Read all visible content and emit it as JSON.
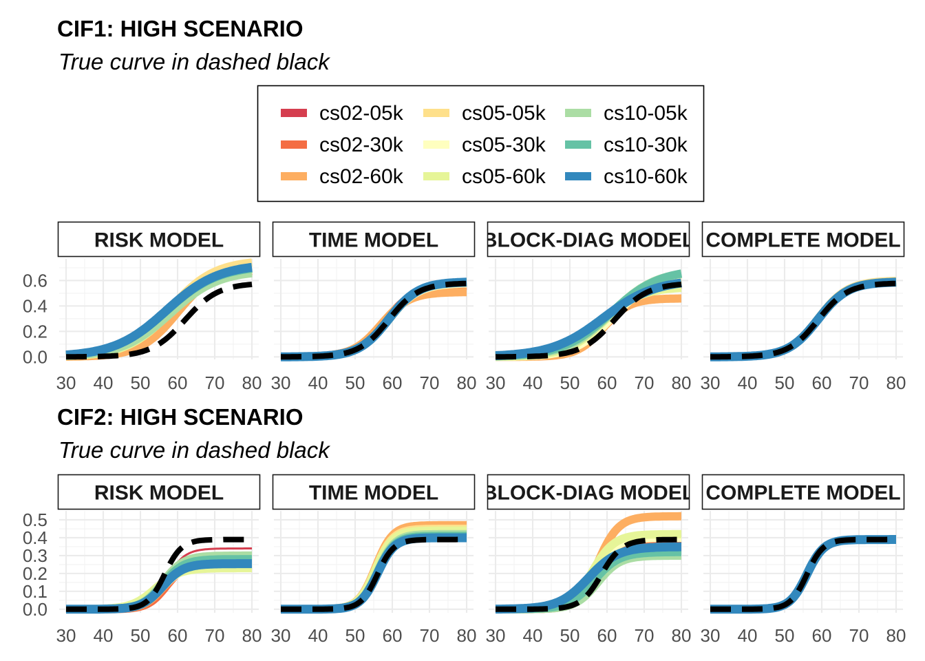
{
  "colors": {
    "cs02-05k": "#d53e4f",
    "cs02-30k": "#f46d43",
    "cs02-60k": "#fdae61",
    "cs05-05k": "#fee08b",
    "cs05-30k": "#ffffbf",
    "cs05-60k": "#e6f598",
    "cs10-05k": "#abdda4",
    "cs10-30k": "#66c2a5",
    "cs10-60k": "#3288bd",
    "true_curve": "#000000"
  },
  "legend": {
    "items": [
      "cs02-05k",
      "cs05-05k",
      "cs10-05k",
      "cs02-30k",
      "cs05-30k",
      "cs10-30k",
      "cs02-60k",
      "cs05-60k",
      "cs10-60k"
    ]
  },
  "chart_data": [
    {
      "type": "line",
      "title": "CIF1: HIGH SCENARIO",
      "subtitle": "True curve in dashed black",
      "x_ticks": [
        30,
        40,
        50,
        60,
        70,
        80
      ],
      "xlim": [
        30,
        80
      ],
      "y_ticks": [
        0.0,
        0.2,
        0.4,
        0.6
      ],
      "y_tick_labels": [
        "0.0",
        "0.2",
        "0.4",
        "0.6"
      ],
      "ylim": [
        -0.02,
        0.77
      ],
      "panels": [
        {
          "label": "RISK MODEL",
          "true_curve": {
            "plateau": 0.58,
            "midpoint": 62,
            "scale": 4.5
          },
          "series": [
            {
              "name": "cs02-05k",
              "plateau": 0.65,
              "midpoint": 59,
              "scale": 5.5
            },
            {
              "name": "cs02-30k",
              "plateau": 0.69,
              "midpoint": 59,
              "scale": 5.5
            },
            {
              "name": "cs02-60k",
              "plateau": 0.7,
              "midpoint": 60,
              "scale": 5.0
            },
            {
              "name": "cs05-05k",
              "plateau": 0.76,
              "midpoint": 58,
              "scale": 6.0
            },
            {
              "name": "cs05-30k",
              "plateau": 0.72,
              "midpoint": 58,
              "scale": 6.0
            },
            {
              "name": "cs05-60k",
              "plateau": 0.7,
              "midpoint": 58,
              "scale": 6.0
            },
            {
              "name": "cs10-05k",
              "plateau": 0.68,
              "midpoint": 58,
              "scale": 6.5
            },
            {
              "name": "cs10-30k",
              "plateau": 0.72,
              "midpoint": 57,
              "scale": 7.0
            },
            {
              "name": "cs10-60k",
              "plateau": 0.73,
              "midpoint": 57,
              "scale": 7.0
            }
          ]
        },
        {
          "label": "TIME MODEL",
          "true_curve": {
            "plateau": 0.58,
            "midpoint": 59,
            "scale": 4.0
          },
          "series": [
            {
              "name": "cs02-05k",
              "plateau": 0.58,
              "midpoint": 58,
              "scale": 4.0
            },
            {
              "name": "cs02-30k",
              "plateau": 0.56,
              "midpoint": 58,
              "scale": 4.0
            },
            {
              "name": "cs02-60k",
              "plateau": 0.51,
              "midpoint": 57,
              "scale": 3.8
            },
            {
              "name": "cs05-05k",
              "plateau": 0.59,
              "midpoint": 59,
              "scale": 4.0
            },
            {
              "name": "cs05-30k",
              "plateau": 0.58,
              "midpoint": 59,
              "scale": 4.0
            },
            {
              "name": "cs05-60k",
              "plateau": 0.59,
              "midpoint": 59,
              "scale": 4.0
            },
            {
              "name": "cs10-05k",
              "plateau": 0.59,
              "midpoint": 59,
              "scale": 4.0
            },
            {
              "name": "cs10-30k",
              "plateau": 0.59,
              "midpoint": 59,
              "scale": 4.0
            },
            {
              "name": "cs10-60k",
              "plateau": 0.59,
              "midpoint": 59,
              "scale": 4.0
            }
          ]
        },
        {
          "label": "BLOCK-DIAG MODEL",
          "true_curve": {
            "plateau": 0.58,
            "midpoint": 62,
            "scale": 4.5
          },
          "series": [
            {
              "name": "cs02-05k",
              "plateau": 0.6,
              "midpoint": 61,
              "scale": 5.0
            },
            {
              "name": "cs02-30k",
              "plateau": 0.58,
              "midpoint": 61,
              "scale": 5.0
            },
            {
              "name": "cs02-60k",
              "plateau": 0.46,
              "midpoint": 59,
              "scale": 3.5
            },
            {
              "name": "cs05-05k",
              "plateau": 0.62,
              "midpoint": 61,
              "scale": 5.0
            },
            {
              "name": "cs05-30k",
              "plateau": 0.6,
              "midpoint": 61,
              "scale": 5.0
            },
            {
              "name": "cs05-60k",
              "plateau": 0.55,
              "midpoint": 59,
              "scale": 5.0
            },
            {
              "name": "cs10-05k",
              "plateau": 0.68,
              "midpoint": 61,
              "scale": 6.0
            },
            {
              "name": "cs10-30k",
              "plateau": 0.69,
              "midpoint": 61,
              "scale": 6.5
            },
            {
              "name": "cs10-60k",
              "plateau": 0.61,
              "midpoint": 59,
              "scale": 7.0
            }
          ]
        },
        {
          "label": "COMPLETE MODEL",
          "true_curve": {
            "plateau": 0.58,
            "midpoint": 59,
            "scale": 4.0
          },
          "series": [
            {
              "name": "cs02-05k",
              "plateau": 0.59,
              "midpoint": 59,
              "scale": 4.0
            },
            {
              "name": "cs02-30k",
              "plateau": 0.59,
              "midpoint": 59,
              "scale": 4.0
            },
            {
              "name": "cs02-60k",
              "plateau": 0.59,
              "midpoint": 59,
              "scale": 4.0
            },
            {
              "name": "cs05-05k",
              "plateau": 0.6,
              "midpoint": 59,
              "scale": 4.0
            },
            {
              "name": "cs05-30k",
              "plateau": 0.59,
              "midpoint": 59,
              "scale": 4.0
            },
            {
              "name": "cs05-60k",
              "plateau": 0.59,
              "midpoint": 59,
              "scale": 4.0
            },
            {
              "name": "cs10-05k",
              "plateau": 0.59,
              "midpoint": 59,
              "scale": 4.0
            },
            {
              "name": "cs10-30k",
              "plateau": 0.59,
              "midpoint": 59,
              "scale": 4.0
            },
            {
              "name": "cs10-60k",
              "plateau": 0.59,
              "midpoint": 59,
              "scale": 4.0
            }
          ]
        }
      ]
    },
    {
      "type": "line",
      "title": "CIF2: HIGH SCENARIO",
      "subtitle": "True curve in dashed black",
      "x_ticks": [
        30,
        40,
        50,
        60,
        70,
        80
      ],
      "xlim": [
        30,
        80
      ],
      "y_ticks": [
        0.0,
        0.1,
        0.2,
        0.3,
        0.4,
        0.5
      ],
      "y_tick_labels": [
        "0.0",
        "0.1",
        "0.2",
        "0.3",
        "0.4",
        "0.5"
      ],
      "ylim": [
        -0.02,
        0.55
      ],
      "panels": [
        {
          "label": "RISK MODEL",
          "true_curve": {
            "plateau": 0.39,
            "midpoint": 56.5,
            "scale": 2.3
          },
          "series": [
            {
              "name": "cs02-05k",
              "plateau": 0.34,
              "midpoint": 57,
              "scale": 2.5
            },
            {
              "name": "cs02-30k",
              "plateau": 0.26,
              "midpoint": 57,
              "scale": 2.5
            },
            {
              "name": "cs02-60k",
              "plateau": 0.24,
              "midpoint": 56,
              "scale": 2.6
            },
            {
              "name": "cs05-05k",
              "plateau": 0.27,
              "midpoint": 56,
              "scale": 2.8
            },
            {
              "name": "cs05-30k",
              "plateau": 0.25,
              "midpoint": 56,
              "scale": 3.0
            },
            {
              "name": "cs05-60k",
              "plateau": 0.23,
              "midpoint": 54,
              "scale": 3.2
            },
            {
              "name": "cs10-05k",
              "plateau": 0.3,
              "midpoint": 56,
              "scale": 2.8
            },
            {
              "name": "cs10-30k",
              "plateau": 0.28,
              "midpoint": 56,
              "scale": 2.8
            },
            {
              "name": "cs10-60k",
              "plateau": 0.255,
              "midpoint": 56,
              "scale": 2.8
            }
          ]
        },
        {
          "label": "TIME MODEL",
          "true_curve": {
            "plateau": 0.39,
            "midpoint": 56,
            "scale": 2.2
          },
          "series": [
            {
              "name": "cs02-05k",
              "plateau": 0.42,
              "midpoint": 56,
              "scale": 2.3
            },
            {
              "name": "cs02-30k",
              "plateau": 0.44,
              "midpoint": 56,
              "scale": 2.3
            },
            {
              "name": "cs02-60k",
              "plateau": 0.47,
              "midpoint": 55.5,
              "scale": 2.3
            },
            {
              "name": "cs05-05k",
              "plateau": 0.45,
              "midpoint": 55.5,
              "scale": 2.3
            },
            {
              "name": "cs05-30k",
              "plateau": 0.43,
              "midpoint": 56,
              "scale": 2.3
            },
            {
              "name": "cs05-60k",
              "plateau": 0.44,
              "midpoint": 55.5,
              "scale": 2.3
            },
            {
              "name": "cs10-05k",
              "plateau": 0.42,
              "midpoint": 56,
              "scale": 2.3
            },
            {
              "name": "cs10-30k",
              "plateau": 0.41,
              "midpoint": 56,
              "scale": 2.3
            },
            {
              "name": "cs10-60k",
              "plateau": 0.4,
              "midpoint": 56,
              "scale": 2.3
            }
          ]
        },
        {
          "label": "BLOCK-DIAG MODEL",
          "true_curve": {
            "plateau": 0.39,
            "midpoint": 58.5,
            "scale": 2.8
          },
          "series": [
            {
              "name": "cs02-05k",
              "plateau": 0.38,
              "midpoint": 58,
              "scale": 3.0
            },
            {
              "name": "cs02-30k",
              "plateau": 0.37,
              "midpoint": 58,
              "scale": 3.0
            },
            {
              "name": "cs02-60k",
              "plateau": 0.52,
              "midpoint": 57.5,
              "scale": 2.8
            },
            {
              "name": "cs05-05k",
              "plateau": 0.41,
              "midpoint": 57,
              "scale": 3.0
            },
            {
              "name": "cs05-30k",
              "plateau": 0.4,
              "midpoint": 56.5,
              "scale": 3.0
            },
            {
              "name": "cs05-60k",
              "plateau": 0.42,
              "midpoint": 56,
              "scale": 3.0
            },
            {
              "name": "cs10-05k",
              "plateau": 0.3,
              "midpoint": 57.5,
              "scale": 3.0
            },
            {
              "name": "cs10-30k",
              "plateau": 0.32,
              "midpoint": 56.5,
              "scale": 3.4
            },
            {
              "name": "cs10-60k",
              "plateau": 0.35,
              "midpoint": 55,
              "scale": 4.0
            }
          ]
        },
        {
          "label": "COMPLETE MODEL",
          "true_curve": {
            "plateau": 0.39,
            "midpoint": 56,
            "scale": 2.2
          },
          "series": [
            {
              "name": "cs02-05k",
              "plateau": 0.39,
              "midpoint": 56,
              "scale": 2.3
            },
            {
              "name": "cs02-30k",
              "plateau": 0.39,
              "midpoint": 56,
              "scale": 2.3
            },
            {
              "name": "cs02-60k",
              "plateau": 0.39,
              "midpoint": 56,
              "scale": 2.3
            },
            {
              "name": "cs05-05k",
              "plateau": 0.39,
              "midpoint": 56,
              "scale": 2.3
            },
            {
              "name": "cs05-30k",
              "plateau": 0.39,
              "midpoint": 56,
              "scale": 2.3
            },
            {
              "name": "cs05-60k",
              "plateau": 0.39,
              "midpoint": 56,
              "scale": 2.3
            },
            {
              "name": "cs10-05k",
              "plateau": 0.39,
              "midpoint": 56,
              "scale": 2.3
            },
            {
              "name": "cs10-30k",
              "plateau": 0.39,
              "midpoint": 56,
              "scale": 2.3
            },
            {
              "name": "cs10-60k",
              "plateau": 0.39,
              "midpoint": 56,
              "scale": 2.3
            }
          ]
        }
      ]
    }
  ]
}
